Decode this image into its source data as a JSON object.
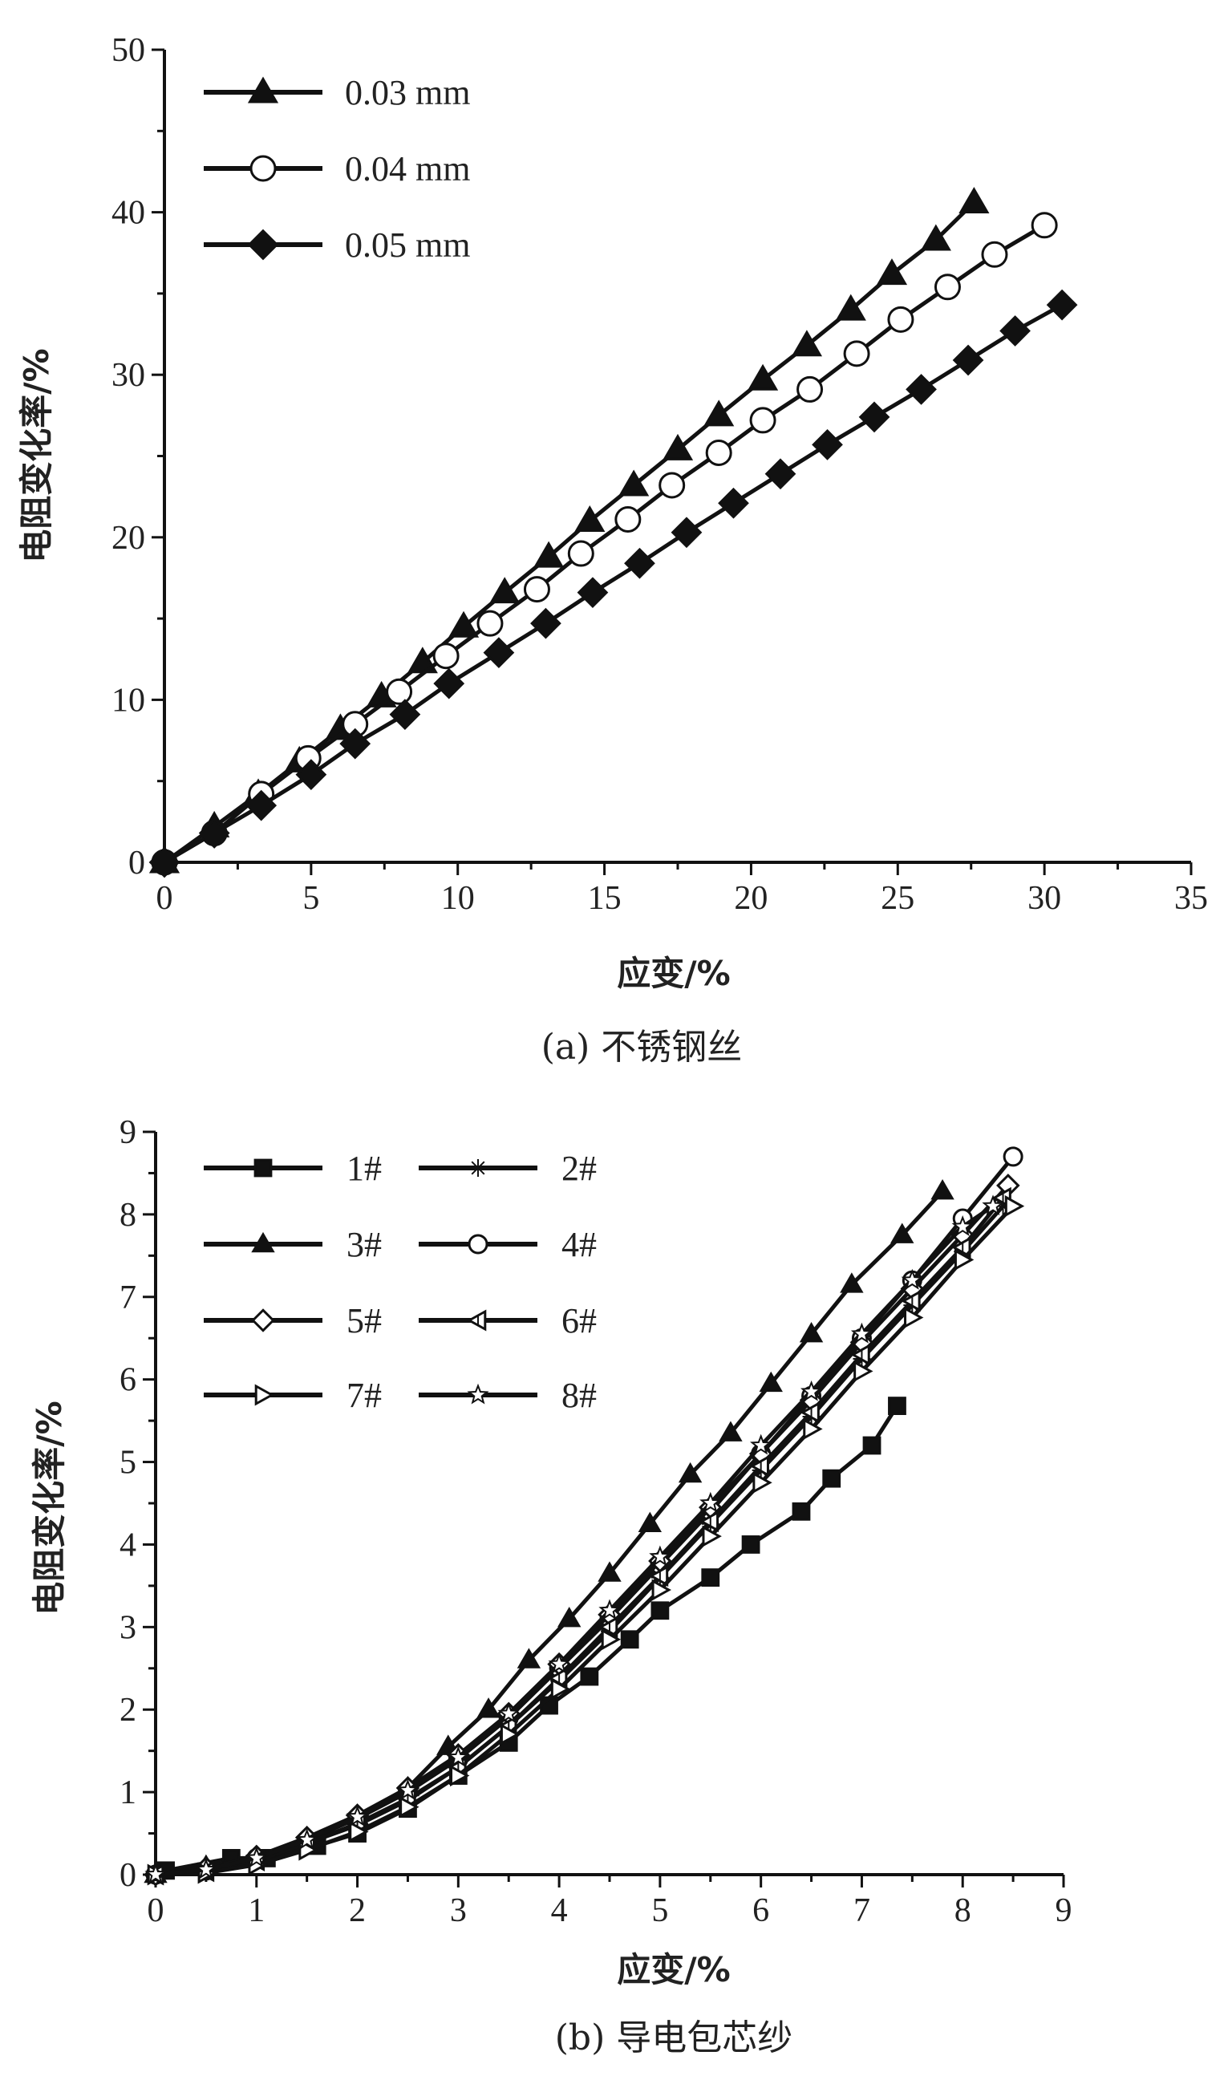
{
  "chart_data": [
    {
      "type": "line",
      "title": "(a) 不锈钢丝",
      "xlabel": "应变/%",
      "ylabel": "电阻变化率/%",
      "xlim": [
        0,
        35
      ],
      "ylim": [
        0,
        50
      ],
      "xticks": [
        "0",
        "5",
        "10",
        "15",
        "20",
        "25",
        "30",
        "35"
      ],
      "yticks": [
        "0",
        "10",
        "20",
        "30",
        "40",
        "50"
      ],
      "legend_position": "top-left",
      "series": [
        {
          "name": "0.03 mm",
          "marker": "triangle",
          "x": [
            0,
            1.7,
            3.2,
            4.6,
            6,
            7.4,
            8.8,
            10.2,
            11.6,
            13.1,
            14.5,
            16,
            17.5,
            18.9,
            20.4,
            21.9,
            23.4,
            24.8,
            26.3,
            27.6
          ],
          "y": [
            0,
            2.2,
            4.2,
            6.2,
            8.2,
            10.2,
            12.3,
            14.5,
            16.6,
            18.8,
            21,
            23.2,
            25.4,
            27.5,
            29.7,
            31.8,
            34,
            36.2,
            38.3,
            40.6
          ]
        },
        {
          "name": "0.04 mm",
          "marker": "circle-open",
          "x": [
            0,
            1.7,
            3.3,
            4.9,
            6.5,
            8,
            9.6,
            11.1,
            12.7,
            14.2,
            15.8,
            17.3,
            18.9,
            20.4,
            22,
            23.6,
            25.1,
            26.7,
            28.3,
            30
          ],
          "y": [
            0,
            1.8,
            4.2,
            6.4,
            8.5,
            10.5,
            12.7,
            14.7,
            16.8,
            19,
            21.1,
            23.2,
            25.2,
            27.2,
            29.1,
            31.3,
            33.4,
            35.4,
            37.4,
            39.2
          ]
        },
        {
          "name": "0.05 mm",
          "marker": "diamond",
          "x": [
            0,
            1.7,
            3.3,
            5,
            6.5,
            8.2,
            9.7,
            11.4,
            13,
            14.6,
            16.2,
            17.8,
            19.4,
            21,
            22.6,
            24.2,
            25.8,
            27.4,
            29,
            30.6
          ],
          "y": [
            0,
            1.8,
            3.5,
            5.4,
            7.3,
            9.1,
            11,
            12.9,
            14.7,
            16.6,
            18.4,
            20.3,
            22.1,
            23.9,
            25.7,
            27.4,
            29.1,
            30.9,
            32.7,
            34.3
          ]
        }
      ]
    },
    {
      "type": "line",
      "title": "(b) 导电包芯纱",
      "xlabel": "应变/%",
      "ylabel": "电阻变化率/%",
      "xlim": [
        0,
        9
      ],
      "ylim": [
        0,
        9
      ],
      "xticks": [
        "0",
        "1",
        "2",
        "3",
        "4",
        "5",
        "6",
        "7",
        "8",
        "9"
      ],
      "yticks": [
        "0",
        "1",
        "2",
        "3",
        "4",
        "5",
        "6",
        "7",
        "8",
        "9"
      ],
      "legend_position": "top-left",
      "series": [
        {
          "name": "1#",
          "marker": "square",
          "x": [
            0.1,
            0.75,
            1.1,
            1.6,
            2,
            2.5,
            3,
            3.5,
            3.9,
            4.3,
            4.7,
            5,
            5.5,
            5.9,
            6.4,
            6.7,
            7.1,
            7.35
          ],
          "y": [
            0.05,
            0.2,
            0.2,
            0.35,
            0.5,
            0.8,
            1.2,
            1.6,
            2.05,
            2.4,
            2.85,
            3.2,
            3.6,
            4,
            4.4,
            4.8,
            5.2,
            5.68
          ]
        },
        {
          "name": "2#",
          "marker": "asterisk",
          "x": [
            0,
            0.5,
            1,
            1.5,
            2,
            2.5,
            3,
            3.5,
            4,
            4.5,
            5,
            5.5,
            6,
            6.5,
            7,
            7.5,
            8,
            8.4
          ],
          "y": [
            0,
            0.05,
            0.18,
            0.38,
            0.6,
            0.9,
            1.3,
            1.8,
            2.35,
            2.95,
            3.6,
            4.25,
            4.9,
            5.55,
            6.25,
            6.9,
            7.55,
            8.1
          ]
        },
        {
          "name": "3#",
          "marker": "triangle",
          "x": [
            0,
            0.5,
            1,
            1.5,
            2,
            2.5,
            2.9,
            3.3,
            3.7,
            4.1,
            4.5,
            4.9,
            5.3,
            5.7,
            6.1,
            6.5,
            6.9,
            7.4,
            7.8
          ],
          "y": [
            0,
            0.1,
            0.2,
            0.4,
            0.7,
            1.05,
            1.55,
            2,
            2.6,
            3.1,
            3.65,
            4.25,
            4.85,
            5.35,
            5.95,
            6.55,
            7.15,
            7.75,
            8.28
          ]
        },
        {
          "name": "4#",
          "marker": "circle-open",
          "x": [
            0,
            0.5,
            1,
            1.5,
            2,
            2.5,
            3,
            3.5,
            4,
            4.5,
            5,
            5.5,
            6,
            6.5,
            7,
            7.5,
            8,
            8.5
          ],
          "y": [
            0,
            0.05,
            0.2,
            0.42,
            0.68,
            1,
            1.4,
            1.9,
            2.5,
            3.1,
            3.75,
            4.4,
            5.1,
            5.8,
            6.5,
            7.2,
            7.95,
            8.7
          ]
        },
        {
          "name": "5#",
          "marker": "diamond-open",
          "x": [
            0,
            0.5,
            1,
            1.5,
            2,
            2.5,
            3,
            3.5,
            4,
            4.5,
            5,
            5.5,
            6,
            6.5,
            7,
            7.5,
            8,
            8.45
          ],
          "y": [
            0,
            0.08,
            0.22,
            0.45,
            0.72,
            1.05,
            1.45,
            1.95,
            2.55,
            3.15,
            3.8,
            4.45,
            5.1,
            5.75,
            6.45,
            7.1,
            7.75,
            8.35
          ]
        },
        {
          "name": "6#",
          "marker": "left-triangle-open",
          "x": [
            0,
            0.5,
            1,
            1.5,
            2,
            2.5,
            3,
            3.5,
            4,
            4.5,
            5,
            5.5,
            6,
            6.5,
            7,
            7.5,
            8,
            8.4
          ],
          "y": [
            0,
            0.04,
            0.17,
            0.38,
            0.62,
            0.92,
            1.3,
            1.8,
            2.38,
            3,
            3.62,
            4.28,
            4.95,
            5.6,
            6.3,
            6.95,
            7.6,
            8.2
          ]
        },
        {
          "name": "7#",
          "marker": "right-triangle-open",
          "x": [
            0,
            0.5,
            1,
            1.5,
            2,
            2.5,
            3,
            3.5,
            4,
            4.5,
            5,
            5.5,
            6,
            6.5,
            7,
            7.5,
            8,
            8.5
          ],
          "y": [
            0,
            0.02,
            0.12,
            0.3,
            0.52,
            0.82,
            1.2,
            1.7,
            2.25,
            2.85,
            3.45,
            4.1,
            4.75,
            5.4,
            6.1,
            6.75,
            7.45,
            8.1
          ]
        },
        {
          "name": "8#",
          "marker": "star-open",
          "x": [
            0,
            0.5,
            1,
            1.5,
            2,
            2.5,
            3,
            3.5,
            4,
            4.5,
            5,
            5.5,
            6,
            6.5,
            7,
            7.5,
            8,
            8.3
          ],
          "y": [
            0,
            0.06,
            0.2,
            0.42,
            0.7,
            1.02,
            1.42,
            1.95,
            2.55,
            3.2,
            3.85,
            4.5,
            5.2,
            5.85,
            6.55,
            7.2,
            7.85,
            8.1
          ]
        }
      ]
    }
  ]
}
